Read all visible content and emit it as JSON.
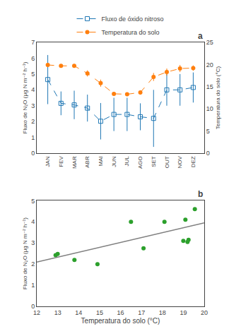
{
  "chart_data": [
    {
      "type": "line",
      "categories": [
        "JAN",
        "FEV",
        "MAR",
        "ABR",
        "MAI",
        "JUN",
        "JUL",
        "AGO",
        "SET",
        "OUT",
        "NOV",
        "DEZ"
      ],
      "series": [
        {
          "name": "Fluxo de óxido nitroso",
          "marker": "square-open",
          "line_style": "dashed",
          "values": [
            4.65,
            3.15,
            3.05,
            2.85,
            2.02,
            2.45,
            2.45,
            2.3,
            2.2,
            4.0,
            4.0,
            4.15
          ],
          "errors": [
            1.55,
            0.75,
            0.9,
            0.85,
            1.15,
            1.05,
            1.05,
            0.85,
            1.8,
            1.0,
            1.0,
            0.95
          ]
        },
        {
          "name": "Temperatura do solo",
          "marker": "circle",
          "line_style": "dashed",
          "axis": "y2",
          "values": [
            19.9,
            19.7,
            19.7,
            18.0,
            15.8,
            13.4,
            13.3,
            13.7,
            17.2,
            18.3,
            19.1,
            19.2
          ],
          "errors": [
            0.4,
            0.3,
            0.4,
            0.7,
            0.8,
            0.4,
            0.4,
            0.5,
            0.9,
            0.8,
            0.8,
            0.6
          ]
        }
      ],
      "ylabel": "Fluxo de N₂O (μg N m⁻² h⁻¹)",
      "y2label": "Temperatura do solo (°C)",
      "ylim": [
        0,
        7
      ],
      "yticks": [
        0,
        1,
        2,
        3,
        4,
        5,
        6,
        7
      ],
      "y2lim": [
        0,
        25
      ],
      "y2ticks": [
        0,
        5,
        10,
        15,
        20,
        25
      ],
      "legend": "top",
      "grid": false,
      "annotations": [
        "a"
      ]
    },
    {
      "type": "scatter",
      "series": [
        {
          "type": "scatter",
          "marker": "circle",
          "x": [
            12.9,
            13.0,
            13.8,
            14.9,
            16.5,
            17.1,
            18.1,
            19.0,
            19.1,
            19.2,
            19.25,
            19.55
          ],
          "values": [
            2.42,
            2.48,
            2.2,
            2.0,
            4.0,
            2.75,
            4.0,
            3.1,
            4.1,
            3.05,
            3.15,
            4.6
          ]
        },
        {
          "type": "line",
          "line_style": "solid",
          "color": "gray",
          "x": [
            12.0,
            20.0
          ],
          "values": [
            2.1,
            3.95
          ]
        }
      ],
      "xlabel": "Temperatura do solo (°C)",
      "ylabel": "Fluxo de N₂O (μg N m⁻² h⁻¹)",
      "xlim": [
        12,
        20
      ],
      "xticks": [
        12,
        13,
        14,
        15,
        16,
        17,
        18,
        19,
        20
      ],
      "ylim": [
        0,
        5
      ],
      "yticks": [
        0,
        1,
        2,
        3,
        4,
        5
      ],
      "grid": false,
      "annotations": [
        "b"
      ]
    }
  ]
}
